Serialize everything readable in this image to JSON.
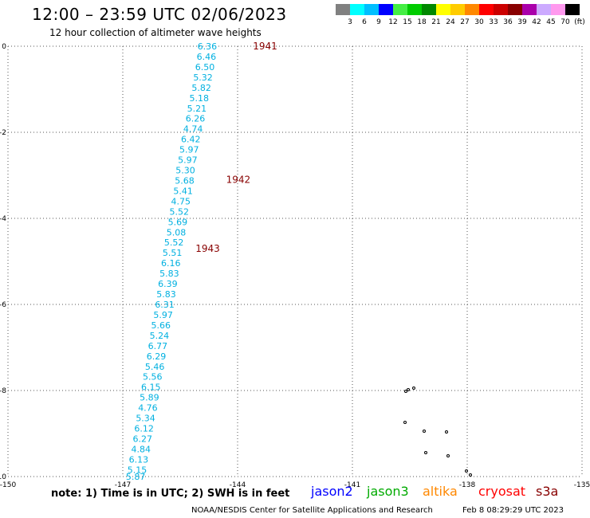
{
  "title": "12:00 – 23:59 UTC 02/06/2023",
  "subtitle": "12 hour collection of altimeter wave heights",
  "note": "note: 1) Time is in UTC; 2) SWH is in feet",
  "credit": "NOAA/NESDIS Center for Satellite Applications and Research",
  "credit_date": "Feb  8 08:29:29 UTC 2023",
  "legend": [
    {
      "label": "jason2",
      "color": "#0000ff"
    },
    {
      "label": "jason3",
      "color": "#00aa00"
    },
    {
      "label": "altika",
      "color": "#ff8800"
    },
    {
      "label": "cryosat",
      "color": "#ff0000"
    },
    {
      "label": "s3a",
      "color": "#880000"
    }
  ],
  "color_scale": {
    "labels": [
      "3",
      "6",
      "9",
      "12",
      "15",
      "18",
      "21",
      "24",
      "27",
      "30",
      "33",
      "36",
      "39",
      "42",
      "45",
      "70",
      "(ft)"
    ],
    "colors": [
      "#808080",
      "#00ffff",
      "#00bfff",
      "#0000ff",
      "#44ee44",
      "#00cc00",
      "#008800",
      "#ffff00",
      "#ffcc00",
      "#ff8800",
      "#ff0000",
      "#cc0000",
      "#880000",
      "#aa00aa",
      "#ccaaff",
      "#ff99ee",
      "#000000"
    ]
  },
  "chart_data": {
    "type": "scatter",
    "title": "12:00 – 23:59 UTC 02/06/2023",
    "subtitle": "12 hour collection of altimeter wave heights",
    "xlabel": "",
    "ylabel": "",
    "xlim": [
      -150,
      -135
    ],
    "ylim": [
      -10,
      0
    ],
    "x_ticks": [
      "-150",
      "-147",
      "-144",
      "-141",
      "-138",
      "-135"
    ],
    "y_ticks": [
      "0",
      "-2",
      "-4",
      "-6",
      "-8",
      "-10"
    ],
    "grid": true,
    "time_labels": [
      {
        "text": "1941",
        "lon": -143.6,
        "lat": 0.0
      },
      {
        "text": "1942",
        "lon": -144.3,
        "lat": -3.1
      },
      {
        "text": "1943",
        "lon": -145.1,
        "lat": -4.7
      }
    ],
    "swh_points": [
      {
        "swh": "6.36",
        "lon": -145.05,
        "lat": 0.0
      },
      {
        "swh": "6.46",
        "lon": -145.07,
        "lat": -0.24
      },
      {
        "swh": "6.50",
        "lon": -145.11,
        "lat": -0.48
      },
      {
        "swh": "5.32",
        "lon": -145.16,
        "lat": -0.72
      },
      {
        "swh": "5.82",
        "lon": -145.2,
        "lat": -0.96
      },
      {
        "swh": "5.18",
        "lon": -145.26,
        "lat": -1.2
      },
      {
        "swh": "5.21",
        "lon": -145.32,
        "lat": -1.44
      },
      {
        "swh": "6.26",
        "lon": -145.36,
        "lat": -1.68
      },
      {
        "swh": "4.74",
        "lon": -145.42,
        "lat": -1.92
      },
      {
        "swh": "6.42",
        "lon": -145.48,
        "lat": -2.16
      },
      {
        "swh": "5.97",
        "lon": -145.52,
        "lat": -2.4
      },
      {
        "swh": "5.97",
        "lon": -145.56,
        "lat": -2.64
      },
      {
        "swh": "5.30",
        "lon": -145.62,
        "lat": -2.88
      },
      {
        "swh": "5.68",
        "lon": -145.64,
        "lat": -3.12
      },
      {
        "swh": "5.41",
        "lon": -145.68,
        "lat": -3.36
      },
      {
        "swh": "4.75",
        "lon": -145.74,
        "lat": -3.6
      },
      {
        "swh": "5.52",
        "lon": -145.78,
        "lat": -3.84
      },
      {
        "swh": "5.69",
        "lon": -145.82,
        "lat": -4.08
      },
      {
        "swh": "5.08",
        "lon": -145.86,
        "lat": -4.32
      },
      {
        "swh": "5.52",
        "lon": -145.92,
        "lat": -4.56
      },
      {
        "swh": "5.51",
        "lon": -145.96,
        "lat": -4.8
      },
      {
        "swh": "6.16",
        "lon": -146.0,
        "lat": -5.04
      },
      {
        "swh": "5.83",
        "lon": -146.04,
        "lat": -5.28
      },
      {
        "swh": "6.39",
        "lon": -146.08,
        "lat": -5.52
      },
      {
        "swh": "5.83",
        "lon": -146.12,
        "lat": -5.76
      },
      {
        "swh": "6.31",
        "lon": -146.16,
        "lat": -6.0
      },
      {
        "swh": "5.97",
        "lon": -146.2,
        "lat": -6.24
      },
      {
        "swh": "5.66",
        "lon": -146.26,
        "lat": -6.48
      },
      {
        "swh": "5.24",
        "lon": -146.3,
        "lat": -6.72
      },
      {
        "swh": "6.77",
        "lon": -146.34,
        "lat": -6.96
      },
      {
        "swh": "6.29",
        "lon": -146.38,
        "lat": -7.2
      },
      {
        "swh": "5.46",
        "lon": -146.42,
        "lat": -7.44
      },
      {
        "swh": "5.56",
        "lon": -146.48,
        "lat": -7.68
      },
      {
        "swh": "6.15",
        "lon": -146.52,
        "lat": -7.92
      },
      {
        "swh": "5.89",
        "lon": -146.56,
        "lat": -8.16
      },
      {
        "swh": "4.76",
        "lon": -146.6,
        "lat": -8.4
      },
      {
        "swh": "5.34",
        "lon": -146.66,
        "lat": -8.64
      },
      {
        "swh": "6.12",
        "lon": -146.7,
        "lat": -8.88
      },
      {
        "swh": "6.27",
        "lon": -146.74,
        "lat": -9.12
      },
      {
        "swh": "4.84",
        "lon": -146.78,
        "lat": -9.36
      },
      {
        "swh": "6.13",
        "lon": -146.84,
        "lat": -9.6
      },
      {
        "swh": "5.15",
        "lon": -146.88,
        "lat": -9.84
      },
      {
        "swh": "5.87",
        "lon": -146.92,
        "lat": -10.0
      }
    ]
  }
}
